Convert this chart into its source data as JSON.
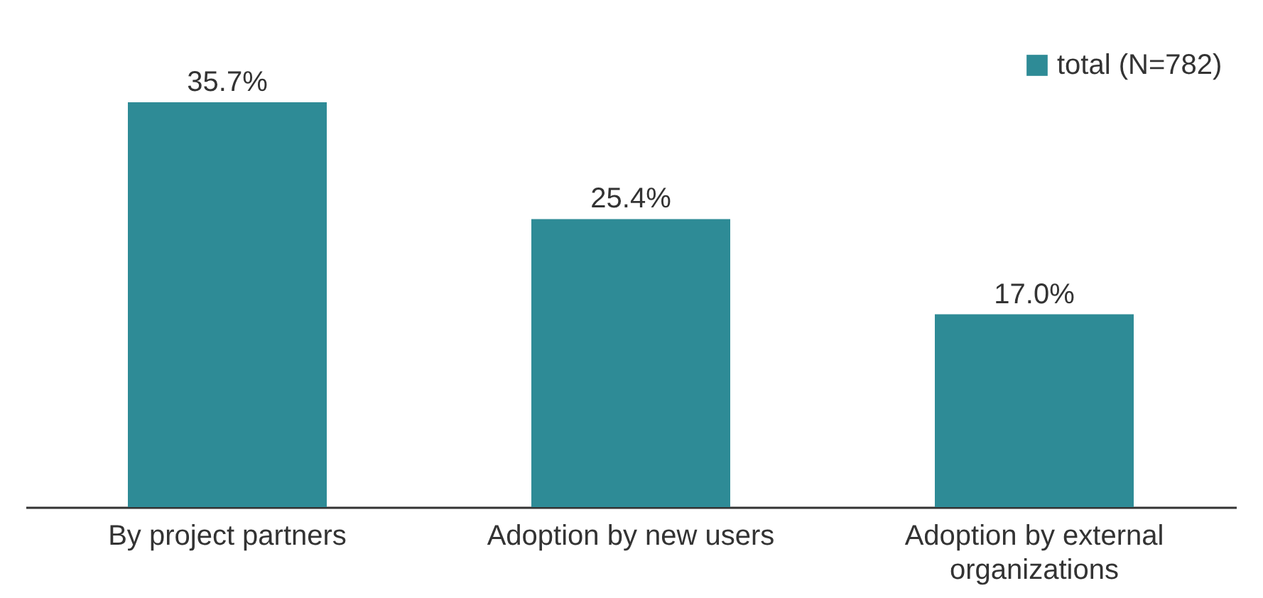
{
  "chart_data": {
    "type": "bar",
    "categories": [
      "By project partners",
      "Adoption by new users",
      "Adoption by external organizations"
    ],
    "series": [
      {
        "name": "total (N=782)",
        "color": "#2e8b96",
        "values": [
          35.7,
          25.4,
          17.0
        ],
        "value_labels": [
          "35.7%",
          "25.4%",
          "17.0%"
        ]
      }
    ],
    "legend": "top right",
    "grid": false,
    "tick_labels": "x"
  }
}
